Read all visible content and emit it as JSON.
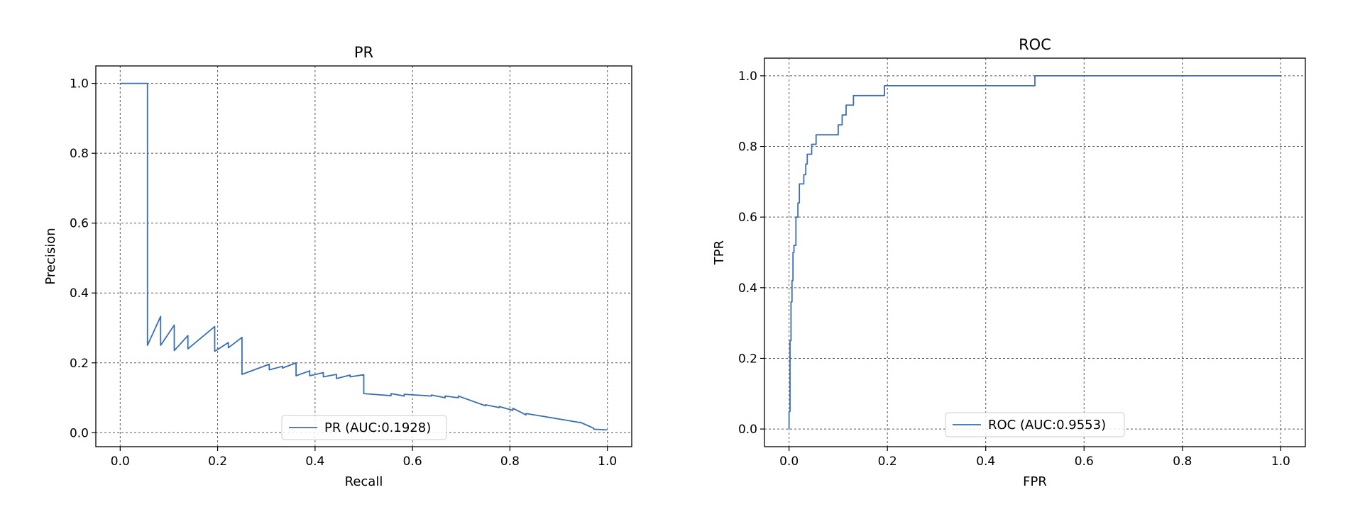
{
  "chart_data": [
    {
      "type": "line",
      "title": "PR",
      "xlabel": "Recall",
      "ylabel": "Precision",
      "xlim": [
        -0.05,
        1.05
      ],
      "ylim": [
        -0.04,
        1.05
      ],
      "xticks": [
        0.0,
        0.2,
        0.4,
        0.6,
        0.8,
        1.0
      ],
      "xtick_labels": [
        "0.0",
        "0.2",
        "0.4",
        "0.6",
        "0.8",
        "1.0"
      ],
      "yticks": [
        0.0,
        0.2,
        0.4,
        0.6,
        0.8,
        1.0
      ],
      "ytick_labels": [
        "0.0",
        "0.2",
        "0.4",
        "0.6",
        "0.8",
        "1.0"
      ],
      "grid": true,
      "legend_position": "lower-center",
      "color": "#3a6fb0",
      "series": [
        {
          "name": "PR (AUC:0.1928)",
          "x": [
            0.0,
            0.056,
            0.056,
            0.056,
            0.083,
            0.083,
            0.111,
            0.111,
            0.139,
            0.139,
            0.194,
            0.194,
            0.222,
            0.222,
            0.25,
            0.25,
            0.306,
            0.306,
            0.333,
            0.333,
            0.361,
            0.361,
            0.389,
            0.389,
            0.417,
            0.417,
            0.444,
            0.444,
            0.472,
            0.472,
            0.5,
            0.5,
            0.5,
            0.556,
            0.556,
            0.583,
            0.583,
            0.639,
            0.639,
            0.667,
            0.667,
            0.694,
            0.694,
            0.75,
            0.75,
            0.778,
            0.778,
            0.806,
            0.806,
            0.833,
            0.833,
            0.944,
            0.944,
            0.972,
            0.972,
            1.0
          ],
          "y": [
            1.0,
            1.0,
            0.4,
            0.25,
            0.333,
            0.25,
            0.308,
            0.235,
            0.278,
            0.24,
            0.304,
            0.233,
            0.258,
            0.243,
            0.273,
            0.167,
            0.196,
            0.18,
            0.19,
            0.185,
            0.2,
            0.163,
            0.177,
            0.163,
            0.172,
            0.16,
            0.167,
            0.155,
            0.165,
            0.16,
            0.166,
            0.16,
            0.112,
            0.106,
            0.112,
            0.105,
            0.11,
            0.105,
            0.108,
            0.1,
            0.105,
            0.1,
            0.105,
            0.077,
            0.08,
            0.072,
            0.075,
            0.064,
            0.07,
            0.051,
            0.055,
            0.029,
            0.03,
            0.013,
            0.01,
            0.008
          ]
        }
      ]
    },
    {
      "type": "line",
      "title": "ROC",
      "xlabel": "FPR",
      "ylabel": "TPR",
      "xlim": [
        -0.05,
        1.05
      ],
      "ylim": [
        -0.05,
        1.05
      ],
      "xticks": [
        0.0,
        0.2,
        0.4,
        0.6,
        0.8,
        1.0
      ],
      "xtick_labels": [
        "0.0",
        "0.2",
        "0.4",
        "0.6",
        "0.8",
        "1.0"
      ],
      "yticks": [
        0.0,
        0.2,
        0.4,
        0.6,
        0.8,
        1.0
      ],
      "ytick_labels": [
        "0.0",
        "0.2",
        "0.4",
        "0.6",
        "0.8",
        "1.0"
      ],
      "grid": true,
      "legend_position": "lower-center",
      "color": "#3a6fb0",
      "series": [
        {
          "name": "ROC (AUC:0.9553)",
          "x": [
            0.0,
            0.0,
            0.002,
            0.002,
            0.004,
            0.004,
            0.006,
            0.006,
            0.008,
            0.008,
            0.01,
            0.01,
            0.014,
            0.014,
            0.018,
            0.018,
            0.021,
            0.021,
            0.024,
            0.024,
            0.03,
            0.03,
            0.034,
            0.034,
            0.037,
            0.037,
            0.04,
            0.04,
            0.046,
            0.046,
            0.055,
            0.055,
            0.1,
            0.1,
            0.108,
            0.108,
            0.116,
            0.116,
            0.123,
            0.123,
            0.131,
            0.131,
            0.194,
            0.194,
            0.5,
            0.5,
            1.0
          ],
          "y": [
            0.0,
            0.05,
            0.05,
            0.25,
            0.25,
            0.36,
            0.36,
            0.42,
            0.42,
            0.5,
            0.5,
            0.52,
            0.52,
            0.6,
            0.6,
            0.64,
            0.64,
            0.694,
            0.694,
            0.694,
            0.694,
            0.72,
            0.72,
            0.75,
            0.75,
            0.778,
            0.778,
            0.778,
            0.778,
            0.806,
            0.806,
            0.833,
            0.833,
            0.861,
            0.861,
            0.889,
            0.889,
            0.917,
            0.917,
            0.917,
            0.917,
            0.944,
            0.944,
            0.972,
            0.972,
            1.0,
            1.0
          ]
        }
      ]
    }
  ]
}
